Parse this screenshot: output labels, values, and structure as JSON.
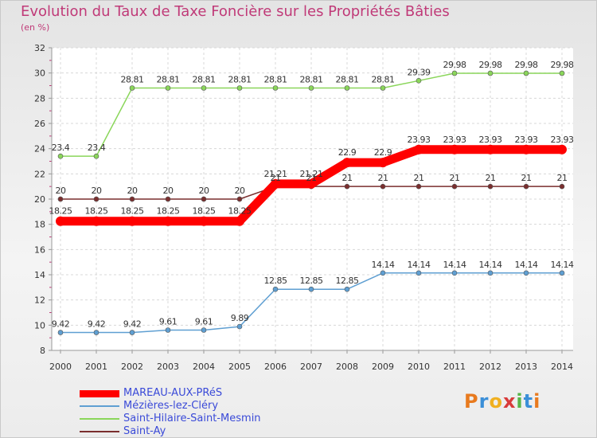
{
  "chart_data": {
    "type": "line",
    "title": "Evolution du Taux de Taxe Foncière sur les Propriétés Bâties",
    "ylabel": "(en %)",
    "x": [
      "2000",
      "2001",
      "2002",
      "2003",
      "2004",
      "2005",
      "2006",
      "2007",
      "2008",
      "2009",
      "2010",
      "2011",
      "2012",
      "2013",
      "2014"
    ],
    "ylim": [
      8,
      32
    ],
    "yticks": [
      8,
      10,
      12,
      14,
      16,
      18,
      20,
      22,
      24,
      26,
      28,
      30,
      32
    ],
    "grid": true,
    "legend": "bottom-left",
    "series": [
      {
        "name": "MAREAU-AUX-PRéS",
        "color": "#ff0000",
        "values": [
          18.25,
          18.25,
          18.25,
          18.25,
          18.25,
          18.25,
          21.21,
          21.21,
          22.9,
          22.9,
          23.93,
          23.93,
          23.93,
          23.93,
          23.93
        ],
        "labels": [
          "18.25",
          "18.25",
          "18.25",
          "18.25",
          "18.25",
          "18.25",
          "21.21",
          "21.21",
          "22.9",
          "22.9",
          "23.93",
          "23.93",
          "23.93",
          "23.93",
          "23.93"
        ]
      },
      {
        "name": "Mézières-lez-Cléry",
        "color": "#5f9fd2",
        "values": [
          9.42,
          9.42,
          9.42,
          9.61,
          9.61,
          9.89,
          12.85,
          12.85,
          12.85,
          14.14,
          14.14,
          14.14,
          14.14,
          14.14,
          14.14
        ],
        "labels": [
          "9.42",
          "9.42",
          "9.42",
          "9.61",
          "9.61",
          "9.89",
          "12.85",
          "12.85",
          "12.85",
          "14.14",
          "14.14",
          "14.14",
          "14.14",
          "14.14",
          "14.14"
        ]
      },
      {
        "name": "Saint-Hilaire-Saint-Mesmin",
        "color": "#8ad65a",
        "values": [
          23.4,
          23.4,
          28.81,
          28.81,
          28.81,
          28.81,
          28.81,
          28.81,
          28.81,
          28.81,
          29.39,
          29.98,
          29.98,
          29.98,
          29.98
        ],
        "labels": [
          "23.4",
          "23.4",
          "28.81",
          "28.81",
          "28.81",
          "28.81",
          "28.81",
          "28.81",
          "28.81",
          "28.81",
          "29.39",
          "29.98",
          "29.98",
          "29.98",
          "29.98"
        ]
      },
      {
        "name": "Saint-Ay",
        "color": "#7a2e2e",
        "values": [
          20,
          20,
          20,
          20,
          20,
          20,
          21,
          21,
          21,
          21,
          21,
          21,
          21,
          21,
          21
        ],
        "labels": [
          "20",
          "20",
          "20",
          "20",
          "20",
          "20",
          "21",
          "21",
          "21",
          "21",
          "21",
          "21",
          "21",
          "21",
          "21"
        ]
      }
    ]
  },
  "logo": {
    "letters": [
      "P",
      "r",
      "o",
      "x",
      "i",
      "t",
      "i"
    ],
    "colors": [
      "#e87a1e",
      "#3b8fd8",
      "#f0b020",
      "#d83b3b",
      "#58b548",
      "#3b8fd8",
      "#e87a1e"
    ]
  }
}
